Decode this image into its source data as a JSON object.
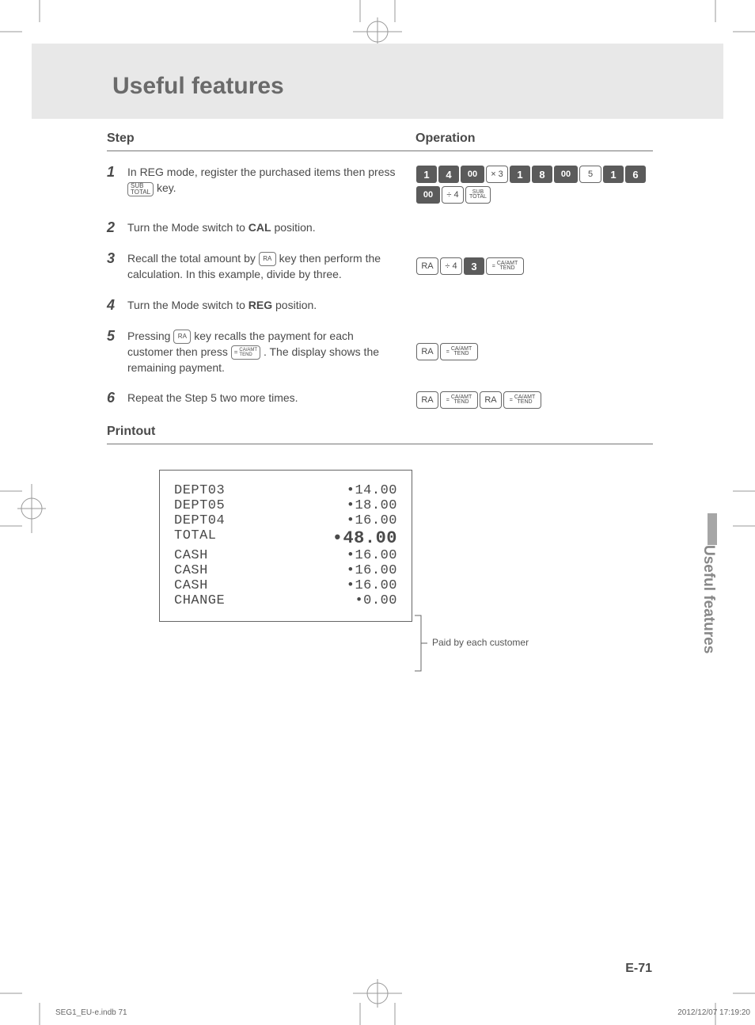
{
  "title": "Useful features",
  "columns": {
    "step": "Step",
    "operation": "Operation"
  },
  "steps": [
    {
      "num": "1",
      "text_before": "In REG mode, register the purchased items then press ",
      "key": "SUB\nTOTAL",
      "text_after": " key."
    },
    {
      "num": "2",
      "text": "Turn the Mode switch to CAL position.",
      "bold": "CAL"
    },
    {
      "num": "3",
      "text_before": "Recall the total amount by ",
      "key": "RA",
      "text_after": " key then perform the calculation. In this example, divide by three."
    },
    {
      "num": "4",
      "text": "Turn the Mode switch to REG position.",
      "bold": "REG"
    },
    {
      "num": "5",
      "text_before": "Pressing ",
      "key": "RA",
      "text_mid": " key recalls the payment for each customer then press ",
      "key2": "= CA/AMT TEND",
      "text_after": ". The display shows the remaining payment."
    },
    {
      "num": "6",
      "text": "Repeat the Step 5 two more times."
    }
  ],
  "op_rows": {
    "r1": [
      "1",
      "4",
      "00",
      "× 3",
      "1",
      "8",
      "00",
      "5",
      "1",
      "6",
      "00",
      "÷ 4",
      "SUB TOTAL"
    ],
    "r3": [
      "RA",
      "÷ 4",
      "3",
      "= CA/AMT TEND"
    ],
    "r5": [
      "RA",
      "= CA/AMT TEND"
    ],
    "r6": [
      "RA",
      "= CA/AMT TEND",
      "RA",
      "= CA/AMT TEND"
    ]
  },
  "printout_heading": "Printout",
  "receipt": [
    {
      "l": "DEPT03",
      "v": "•14.00"
    },
    {
      "l": "DEPT05",
      "v": "•18.00"
    },
    {
      "l": "DEPT04",
      "v": "•16.00"
    },
    {
      "l": "TOTAL",
      "v": "•48.00",
      "total": true
    },
    {
      "l": "CASH",
      "v": "•16.00"
    },
    {
      "l": "CASH",
      "v": "•16.00"
    },
    {
      "l": "CASH",
      "v": "•16.00"
    },
    {
      "l": "CHANGE",
      "v": "•0.00"
    }
  ],
  "annotation": "Paid by each customer",
  "side_tab": "Useful features",
  "page_num": "E-71",
  "footer_left": "SEG1_EU-e.indb   71",
  "footer_right": "2012/12/07   17:19:20",
  "colors": {
    "band": "#e8e8e8",
    "title": "#6a6a6a",
    "text": "#4a4a4a",
    "key_dark": "#5b5b5b",
    "side": "#a6a6a6"
  }
}
